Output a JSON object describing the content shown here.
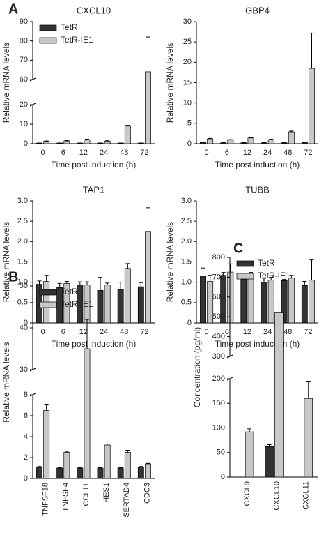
{
  "chart_data": [
    {
      "type": "bar",
      "panel_label": "A",
      "title": "CXCL10",
      "x_label": "Time post induction (h)",
      "y_label": "Relative mRNA levels",
      "categories": [
        "0",
        "6",
        "12",
        "24",
        "48",
        "72"
      ],
      "series": [
        {
          "name": "TetR",
          "color": "#333333",
          "values": [
            0.3,
            0.3,
            0.3,
            0.3,
            0.3,
            0.3
          ],
          "errors": [
            0.05,
            0.05,
            0.05,
            0.05,
            0.05,
            0.05
          ]
        },
        {
          "name": "TetR-IE1",
          "color": "#c8c8c8",
          "values": [
            1.2,
            1.4,
            2.0,
            1.3,
            9.0,
            64
          ],
          "errors": [
            0.2,
            0.2,
            0.3,
            0.2,
            0.4,
            18
          ]
        }
      ],
      "ylim": [
        [
          0,
          20
        ],
        [
          60,
          90
        ]
      ],
      "yticks": [
        0,
        10,
        20,
        60,
        70,
        80,
        90
      ],
      "legend": "upper left"
    },
    {
      "type": "bar",
      "title": "GBP4",
      "x_label": "Time post induction (h)",
      "y_label": "Relative mRNA levels",
      "categories": [
        "0",
        "6",
        "12",
        "24",
        "48",
        "72"
      ],
      "series": [
        {
          "color": "#333333",
          "values": [
            0.3,
            0.2,
            0.2,
            0.2,
            0.2,
            0.3
          ],
          "errors": [
            0.05,
            0.05,
            0.05,
            0.05,
            0.05,
            0.05
          ]
        },
        {
          "color": "#c8c8c8",
          "values": [
            1.2,
            0.9,
            1.4,
            1.0,
            2.9,
            18.5
          ],
          "errors": [
            0.1,
            0.1,
            0.1,
            0.1,
            0.2,
            8.7
          ]
        }
      ],
      "ylim": [
        0,
        30
      ],
      "yticks": [
        0,
        5,
        10,
        15,
        20,
        25,
        30
      ]
    },
    {
      "type": "bar",
      "title": "TAP1",
      "x_label": "Time post induction (h)",
      "y_label": "Relative mRNA levels",
      "categories": [
        "0",
        "6",
        "12",
        "24",
        "48",
        "72"
      ],
      "series": [
        {
          "color": "#333333",
          "values": [
            0.95,
            0.87,
            0.93,
            0.8,
            0.82,
            0.89
          ],
          "errors": [
            0.08,
            0.1,
            0.08,
            0.32,
            0.18,
            0.1
          ]
        },
        {
          "color": "#c8c8c8",
          "values": [
            1.02,
            0.97,
            0.93,
            0.93,
            1.34,
            2.25
          ],
          "errors": [
            0.15,
            0.05,
            0.08,
            0.05,
            0.12,
            0.58
          ]
        }
      ],
      "ylim": [
        0,
        3
      ],
      "yticks": [
        0,
        0.5,
        {
          "value": 1,
          "label": "1.0"
        },
        1.5,
        {
          "value": 2,
          "label": "2.0"
        },
        2.5,
        {
          "value": 3,
          "label": "3.0"
        }
      ]
    },
    {
      "type": "bar",
      "title": "TUBB",
      "x_label": "Time post induction (h)",
      "y_label": "Relative mRNA levels",
      "categories": [
        "0",
        "6",
        "12",
        "24",
        "48",
        "72"
      ],
      "series": [
        {
          "color": "#333333",
          "values": [
            1.15,
            1.17,
            1.07,
            1.0,
            1.04,
            0.92
          ],
          "errors": [
            0.2,
            0.07,
            0.05,
            0.1,
            0.03,
            0.1
          ]
        },
        {
          "color": "#c8c8c8",
          "values": [
            1.02,
            1.25,
            1.12,
            1.05,
            1.1,
            1.05
          ],
          "errors": [
            0.15,
            0.2,
            0.12,
            0.07,
            0.07,
            0.5
          ]
        }
      ],
      "ylim": [
        0,
        3
      ],
      "yticks": [
        0,
        0.5,
        {
          "value": 1,
          "label": "1.0"
        },
        1.5,
        {
          "value": 2,
          "label": "2.0"
        },
        2.5,
        {
          "value": 3,
          "label": "3.0"
        }
      ]
    },
    {
      "type": "bar",
      "panel_label": "B",
      "y_label": "Relative mRNA levels",
      "categories": [
        "TNFSF18",
        "TNFSF4",
        "CCL11",
        "HES1",
        "SERTAD4",
        "CDC3"
      ],
      "series": [
        {
          "name": "TetR",
          "color": "#333333",
          "values": [
            1.1,
            1.0,
            1.0,
            1.0,
            1.0,
            1.1
          ],
          "errors": [
            0.05,
            0.05,
            0.05,
            0.05,
            0.05,
            0.05
          ]
        },
        {
          "name": "TetR-IE1",
          "color": "#c8c8c8",
          "values": [
            6.5,
            2.5,
            35,
            3.2,
            2.5,
            1.4
          ],
          "errors": [
            0.6,
            0.1,
            7,
            0.1,
            0.2,
            0.05
          ]
        }
      ],
      "ylim": [
        [
          0,
          8
        ],
        [
          30,
          50
        ]
      ],
      "yticks": [
        0,
        2,
        4,
        6,
        8,
        30,
        40,
        50
      ],
      "legend": "upper left"
    },
    {
      "type": "bar",
      "panel_label": "C",
      "y_label": "Concentration (pg/ml)",
      "categories": [
        "CXCL9",
        "CXCL10",
        "CXCL11"
      ],
      "series": [
        {
          "name": "TetR",
          "color": "#333333",
          "values": [
            0,
            62,
            0
          ],
          "errors": [
            0,
            4,
            0
          ]
        },
        {
          "name": "TetR-IE1",
          "color": "#c8c8c8",
          "values": [
            92,
            520,
            160
          ],
          "errors": [
            6,
            60,
            35
          ]
        }
      ],
      "ylim": [
        [
          0,
          200
        ],
        [
          300,
          800
        ]
      ],
      "yticks": [
        0,
        50,
        100,
        150,
        200,
        300,
        400,
        500,
        600,
        700,
        800
      ],
      "legend": "upper left"
    }
  ]
}
